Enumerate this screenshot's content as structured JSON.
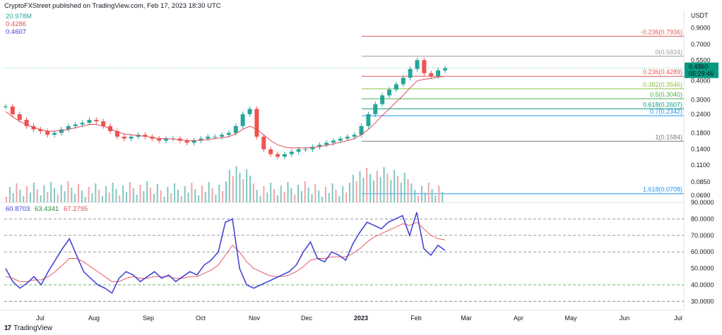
{
  "header": {
    "published": "CryptoFXStreet published on TradingView.com, Feb 17, 2023 18:30 UTC"
  },
  "legend": [
    {
      "text": "20.978M",
      "color": "#26a69a"
    },
    {
      "text": "0.4286",
      "color": "#e04b57"
    },
    {
      "text": "0.4607",
      "color": "#3f3fd8"
    }
  ],
  "indicator": [
    {
      "text": "60.8703",
      "color": "#3f3fd8"
    },
    {
      "text": "63.4341",
      "color": "#2e8b2e"
    },
    {
      "text": "67.2795",
      "color": "#e04b57"
    }
  ],
  "brand": "TradingView",
  "chart_data": {
    "type": "line",
    "price_axis": {
      "unit": "USDT",
      "scale": "log",
      "ticks": [
        "0.9000",
        "0.7000",
        "0.5500",
        "0.4000",
        "0.3000",
        "0.2400",
        "0.1800",
        "0.1400",
        "0.1100",
        "0.0850",
        "0.0690"
      ],
      "last_price": "0.4860",
      "countdown": "05:29:46"
    },
    "rsi_axis": {
      "ticks": [
        "90.0000",
        "80.0000",
        "70.0000",
        "60.0000",
        "50.0000",
        "40.0000",
        "30.0000"
      ],
      "ylim": [
        30,
        90
      ]
    },
    "time_axis": [
      "Jul",
      "Aug",
      "Sep",
      "Oct",
      "Nov",
      "Dec",
      "2023",
      "Feb",
      "Mar",
      "Apr",
      "May",
      "Jun",
      "Jul"
    ],
    "fib_levels": [
      {
        "label": "-0.236(0.7936)",
        "value": 0.7936,
        "color": "#e05a5a"
      },
      {
        "label": "0(0.5834)",
        "value": 0.5834,
        "color": "#9e9e9e"
      },
      {
        "label": "0.236(0.4289)",
        "value": 0.4289,
        "color": "#e05a5a"
      },
      {
        "label": "0.382(0.3546)",
        "value": 0.3546,
        "color": "#8bc34a"
      },
      {
        "label": "0.5(0.3040)",
        "value": 0.304,
        "color": "#4caf50"
      },
      {
        "label": "0.618(0.2607)",
        "value": 0.2607,
        "color": "#089981"
      },
      {
        "label": "0.7(0.2342)",
        "value": 0.2342,
        "color": "#2196f3"
      },
      {
        "label": "1(0.1584)",
        "value": 0.1584,
        "color": "#787b86"
      },
      {
        "label": "1.618(0.0708)",
        "value": 0.0708,
        "color": "#2196f3"
      }
    ],
    "price_series": [
      0.27,
      0.24,
      0.22,
      0.2,
      0.19,
      0.185,
      0.175,
      0.18,
      0.19,
      0.2,
      0.205,
      0.21,
      0.22,
      0.215,
      0.2,
      0.185,
      0.17,
      0.165,
      0.17,
      0.175,
      0.17,
      0.165,
      0.16,
      0.165,
      0.165,
      0.16,
      0.155,
      0.16,
      0.165,
      0.17,
      0.17,
      0.175,
      0.18,
      0.2,
      0.24,
      0.26,
      0.17,
      0.14,
      0.13,
      0.125,
      0.13,
      0.135,
      0.14,
      0.14,
      0.145,
      0.15,
      0.155,
      0.16,
      0.165,
      0.17,
      0.175,
      0.2,
      0.24,
      0.28,
      0.32,
      0.35,
      0.38,
      0.42,
      0.48,
      0.55,
      0.45,
      0.43,
      0.47,
      0.486
    ],
    "ema_series": [
      0.25,
      0.23,
      0.215,
      0.205,
      0.195,
      0.19,
      0.185,
      0.185,
      0.187,
      0.19,
      0.195,
      0.2,
      0.205,
      0.205,
      0.2,
      0.192,
      0.183,
      0.177,
      0.175,
      0.173,
      0.171,
      0.168,
      0.165,
      0.165,
      0.164,
      0.162,
      0.16,
      0.16,
      0.161,
      0.163,
      0.165,
      0.167,
      0.17,
      0.178,
      0.19,
      0.2,
      0.19,
      0.175,
      0.16,
      0.15,
      0.145,
      0.143,
      0.143,
      0.143,
      0.144,
      0.146,
      0.149,
      0.152,
      0.156,
      0.16,
      0.165,
      0.175,
      0.19,
      0.21,
      0.235,
      0.26,
      0.29,
      0.32,
      0.36,
      0.4,
      0.41,
      0.415,
      0.425,
      0.4286
    ],
    "rsi_series": [
      50,
      42,
      38,
      41,
      45,
      40,
      48,
      55,
      62,
      68,
      58,
      48,
      44,
      40,
      38,
      35,
      44,
      48,
      46,
      42,
      45,
      48,
      44,
      46,
      42,
      45,
      48,
      46,
      52,
      55,
      60,
      78,
      80,
      50,
      40,
      38,
      40,
      42,
      44,
      46,
      48,
      52,
      60,
      66,
      56,
      54,
      60,
      58,
      55,
      65,
      72,
      78,
      76,
      74,
      78,
      80,
      82,
      70,
      84,
      62,
      58,
      64,
      60.87
    ],
    "rsi_ma_series": [
      45,
      44,
      42,
      42,
      43,
      43,
      45,
      48,
      52,
      56,
      56,
      54,
      51,
      48,
      45,
      42,
      42,
      44,
      45,
      44,
      44,
      45,
      45,
      45,
      44,
      44,
      45,
      45,
      47,
      49,
      52,
      58,
      64,
      60,
      54,
      50,
      48,
      46,
      45,
      45,
      46,
      48,
      51,
      55,
      56,
      56,
      57,
      57,
      57,
      59,
      62,
      66,
      69,
      71,
      73,
      75,
      77,
      76,
      78,
      74,
      70,
      68,
      67.28
    ]
  }
}
